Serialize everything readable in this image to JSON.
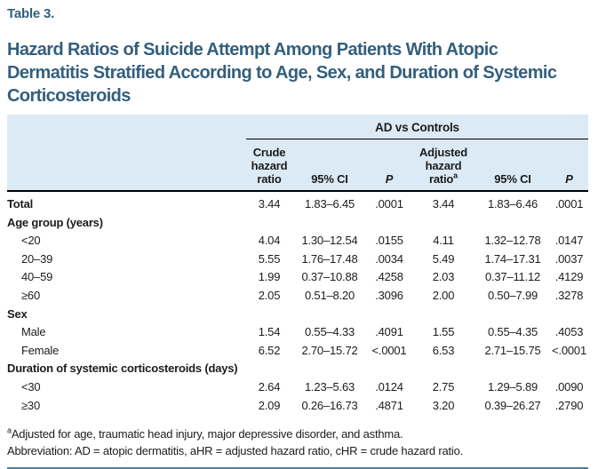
{
  "table_label": "Table 3.",
  "title": "Hazard Ratios of Suicide Attempt Among Patients With Atopic Dermatitis Stratified According to Age, Sex, and Duration of Systemic Corticosteroids",
  "header": {
    "group": "AD vs Controls",
    "crude_hr": "Crude hazard ratio",
    "ci_1": "95% CI",
    "p_1": "P",
    "adjusted_hr": "Adjusted hazard ratio",
    "adjusted_hr_sup": "a",
    "ci_2": "95% CI",
    "p_2": "P"
  },
  "rows": [
    {
      "label": "Total",
      "values": [
        "3.44",
        "1.83–6.45",
        ".0001",
        "3.44",
        "1.83–6.46",
        ".0001"
      ]
    },
    {
      "label": "Age group (years)",
      "values": []
    },
    {
      "label": "<20",
      "values": [
        "4.04",
        "1.30–12.54",
        ".0155",
        "4.11",
        "1.32–12.78",
        ".0147"
      ]
    },
    {
      "label": "20–39",
      "values": [
        "5.55",
        "1.76–17.48",
        ".0034",
        "5.49",
        "1.74–17.31",
        ".0037"
      ]
    },
    {
      "label": "40–59",
      "values": [
        "1.99",
        "0.37–10.88",
        ".4258",
        "2.03",
        "0.37–11.12",
        ".4129"
      ]
    },
    {
      "label": "≥60",
      "values": [
        "2.05",
        "0.51–8.20",
        ".3096",
        "2.00",
        "0.50–7.99",
        ".3278"
      ]
    },
    {
      "label": "Sex",
      "values": []
    },
    {
      "label": "Male",
      "values": [
        "1.54",
        "0.55–4.33",
        ".4091",
        "1.55",
        "0.55–4.35",
        ".4053"
      ]
    },
    {
      "label": "Female",
      "values": [
        "6.52",
        "2.70–15.72",
        "<.0001",
        "6.53",
        "2.71–15.75",
        "<.0001"
      ]
    },
    {
      "label": "Duration of systemic corticosteroids (days)",
      "values": []
    },
    {
      "label": "<30",
      "values": [
        "2.64",
        "1.23–5.63",
        ".0124",
        "2.75",
        "1.29–5.89",
        ".0090"
      ]
    },
    {
      "label": "≥30",
      "values": [
        "2.09",
        "0.26–16.73",
        ".4871",
        "3.20",
        "0.39–26.27",
        ".2790"
      ]
    }
  ],
  "footnotes": {
    "marker": "a",
    "adjustment": "Adjusted for age, traumatic head injury, major depressive disorder, and asthma.",
    "abbreviation": "Abbreviation: AD = atopic dermatitis, aHR = adjusted hazard ratio, cHR = crude hazard ratio."
  },
  "colors": {
    "title_teal": "#335f7d",
    "header_bg": "#dbeaf5",
    "rule_blue": "#4f7f9d",
    "text": "#1c1c1c"
  }
}
